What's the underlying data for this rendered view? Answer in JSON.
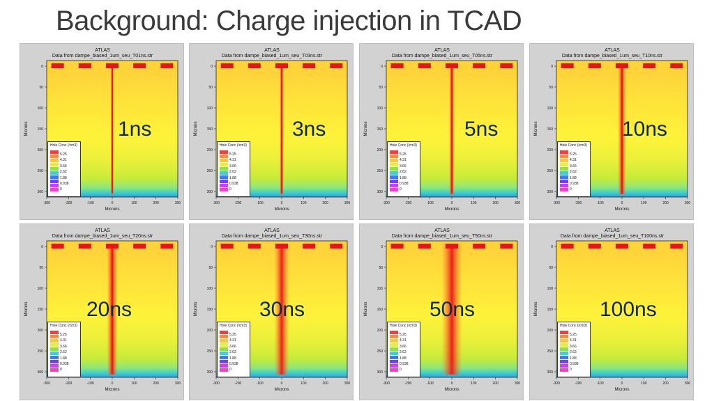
{
  "slide": {
    "title": "Background: Charge injection in TCAD"
  },
  "plot_common": {
    "app_title": "ATLAS",
    "xlabel": "Microns",
    "ylabel": "Microns",
    "x_ticks": [
      "-300",
      "-200",
      "-100",
      "0",
      "100",
      "200",
      "300"
    ],
    "y_ticks": [
      "0",
      "50",
      "100",
      "150",
      "200",
      "250",
      "300"
    ],
    "legend_title": "Hole Conc (/cm3)",
    "legend_values": [
      "5.25",
      "4.31",
      "3.66",
      "2.62",
      "1.88",
      "0.938",
      "0"
    ],
    "legend_colors": [
      "#ff3a3a",
      "#ff8a3a",
      "#ffc43a",
      "#e6f03a",
      "#8ae63a",
      "#3ad2d2",
      "#3a7aff",
      "#7a3aff",
      "#d23aff",
      "#ff3ad2"
    ]
  },
  "panels": [
    {
      "file": "Data from dampe_biased_1um_seu_T01ns.str",
      "time": "1ns",
      "spread": 2
    },
    {
      "file": "Data from dampe_biased_1um_seu_T03ns.str",
      "time": "3ns",
      "spread": 3
    },
    {
      "file": "Data from dampe_biased_1um_seu_T05ns.str",
      "time": "5ns",
      "spread": 4
    },
    {
      "file": "Data from dampe_biased_1um_seu_T10ns.str",
      "time": "10ns",
      "spread": 6
    },
    {
      "file": "Data from dampe_biased_1um_seu_T20ns.str",
      "time": "20ns",
      "spread": 8
    },
    {
      "file": "Data from dampe_biased_1um_seu_T30ns.str",
      "time": "30ns",
      "spread": 11
    },
    {
      "file": "Data from dampe_biased_1um_seu_T50ns.str",
      "time": "50ns",
      "spread": 15
    },
    {
      "file": "Data from dampe_biased_1um_seu_T100ns.str",
      "time": "100ns",
      "spread": 0
    }
  ]
}
